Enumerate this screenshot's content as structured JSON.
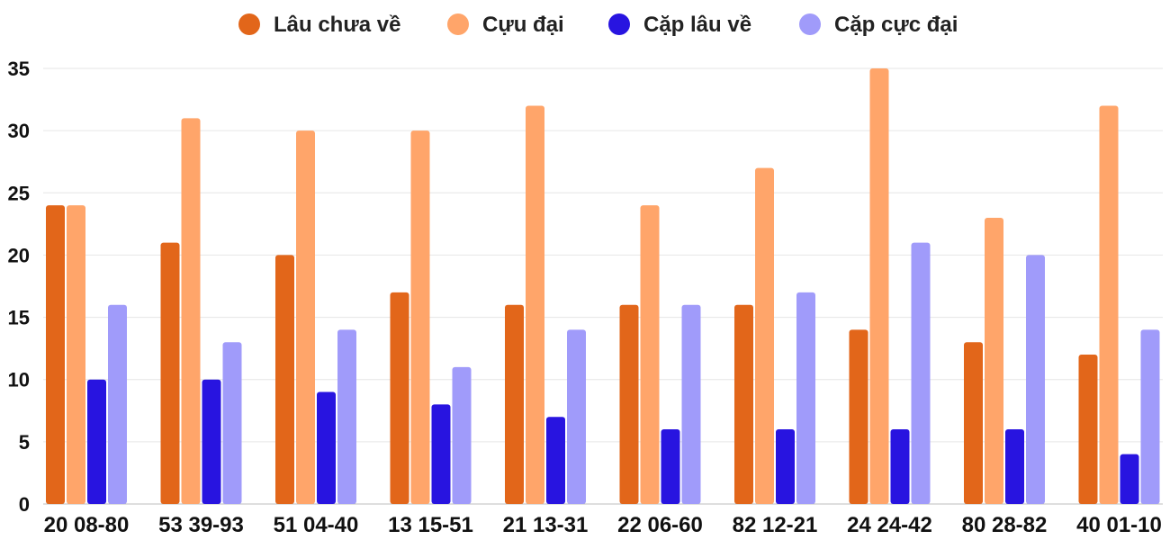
{
  "chart_data": {
    "type": "bar",
    "categories": [
      "20 08-80",
      "53 39-93",
      "51 04-40",
      "13 15-51",
      "21 13-31",
      "22 06-60",
      "82 12-21",
      "24 24-42",
      "80 28-82",
      "40 01-10"
    ],
    "series": [
      {
        "name": "Lâu chưa về",
        "color": "#E2661A",
        "values": [
          24,
          21,
          20,
          17,
          16,
          16,
          16,
          14,
          13,
          12
        ]
      },
      {
        "name": "Cựu đại",
        "color": "#FFA56A",
        "values": [
          24,
          31,
          30,
          30,
          32,
          24,
          27,
          35,
          23,
          32
        ]
      },
      {
        "name": "Cặp lâu về",
        "color": "#2814E0",
        "values": [
          10,
          10,
          9,
          8,
          7,
          6,
          6,
          6,
          6,
          4
        ]
      },
      {
        "name": "Cặp cực đại",
        "color": "#A09BFA",
        "values": [
          16,
          13,
          14,
          11,
          14,
          16,
          17,
          21,
          20,
          14
        ]
      }
    ],
    "ylim": [
      0,
      35
    ],
    "yticks": [
      "0",
      "5",
      "10",
      "15",
      "20",
      "25",
      "30",
      "35"
    ],
    "grid": true,
    "legend_position": "top-center"
  }
}
